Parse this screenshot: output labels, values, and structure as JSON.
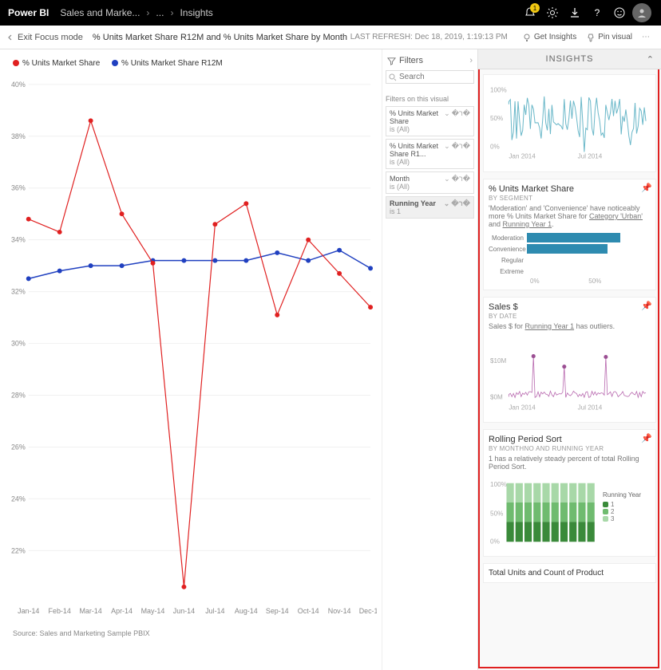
{
  "topbar": {
    "brand": "Power BI",
    "crumb1": "Sales and Marke...",
    "crumb2": "...",
    "crumb3": "Insights",
    "notification_badge": "1"
  },
  "subhead": {
    "exit": "Exit Focus mode",
    "title": "% Units Market Share R12M and % Units Market Share by Month",
    "last_refresh_label": "LAST REFRESH:",
    "last_refresh_value": "Dec 18, 2019, 1:19:13 PM",
    "get_insights": "Get Insights",
    "pin_visual": "Pin visual"
  },
  "chart": {
    "type": "line",
    "legend": [
      {
        "label": "% Units Market Share",
        "color": "#e02020"
      },
      {
        "label": "% Units Market Share R12M",
        "color": "#2040c0"
      }
    ],
    "y_ticks": [
      "40%",
      "38%",
      "36%",
      "34%",
      "32%",
      "30%",
      "28%",
      "26%",
      "24%",
      "22%"
    ],
    "x_labels": [
      "Jan-14",
      "Feb-14",
      "Mar-14",
      "Apr-14",
      "May-14",
      "Jun-14",
      "Jul-14",
      "Aug-14",
      "Sep-14",
      "Oct-14",
      "Nov-14",
      "Dec-14"
    ],
    "ylim": [
      20,
      40
    ],
    "series_red": [
      34.8,
      34.3,
      38.6,
      35.0,
      33.1,
      20.6,
      34.6,
      35.4,
      31.1,
      34.0,
      32.7,
      31.4
    ],
    "series_blue": [
      32.5,
      32.8,
      33.0,
      33.0,
      33.2,
      33.2,
      33.2,
      33.2,
      33.5,
      33.2,
      33.6,
      32.9
    ],
    "line_width_red": 1.2,
    "line_width_blue": 1.5,
    "marker_radius": 3,
    "background": "#ffffff",
    "grid_color": "#f0f0f0",
    "source": "Source: Sales and Marketing Sample PBIX"
  },
  "filters": {
    "header": "Filters",
    "search_placeholder": "Search",
    "section_label": "Filters on this visual",
    "cards": [
      {
        "name": "% Units Market Share",
        "sub": "is (All)",
        "active": false
      },
      {
        "name": "% Units Market Share R1...",
        "sub": "is (All)",
        "active": false
      },
      {
        "name": "Month",
        "sub": "is (All)",
        "active": false
      },
      {
        "name": "Running Year",
        "sub": "is 1",
        "active": true
      }
    ]
  },
  "insights": {
    "header": "INSIGHTS",
    "card0": {
      "y_ticks": [
        "100%",
        "50%",
        "0%"
      ],
      "x_labels": [
        "Jan 2014",
        "Jul 2014"
      ],
      "color": "#6bb8c9"
    },
    "card1": {
      "title": "% Units Market Share",
      "subtitle": "BY SEGMENT",
      "desc_pre": "'Moderation' and 'Convenience' have noticeably more % Units Market Share for ",
      "desc_u1": "Category 'Urban'",
      "desc_mid": " and ",
      "desc_u2": "Running Year 1",
      "desc_post": ".",
      "bars": [
        {
          "label": "Moderation",
          "pct": 90,
          "color": "#2e8bb0"
        },
        {
          "label": "Convenience",
          "pct": 78,
          "color": "#2e8bb0"
        },
        {
          "label": "Regular",
          "pct": 0,
          "color": "#2e8bb0"
        },
        {
          "label": "Extreme",
          "pct": 0,
          "color": "#2e8bb0"
        }
      ],
      "x_ticks": [
        "0%",
        "50%"
      ]
    },
    "card2": {
      "title": "Sales $",
      "subtitle": "BY DATE",
      "desc_pre": "Sales $ for ",
      "desc_u": "Running Year 1",
      "desc_post": " has outliers.",
      "y_ticks": [
        "$10M",
        "$0M"
      ],
      "x_labels": [
        "Jan 2014",
        "Jul 2014"
      ],
      "color": "#b96bb0",
      "outlier_color": "#9b4f93"
    },
    "card3": {
      "title": "Rolling Period Sort",
      "subtitle": "BY MONTHNO AND RUNNING YEAR",
      "desc": "1 has a relatively steady percent of total Rolling Period Sort.",
      "y_ticks": [
        "100%",
        "50%",
        "0%"
      ],
      "legend_title": "Running Year",
      "legend": [
        {
          "label": "1",
          "color": "#3a8a3a"
        },
        {
          "label": "2",
          "color": "#6fbb6f"
        },
        {
          "label": "3",
          "color": "#a8d8a8"
        }
      ],
      "bar_count": 10
    },
    "bottom_card": "Total Units and Count of Product"
  }
}
